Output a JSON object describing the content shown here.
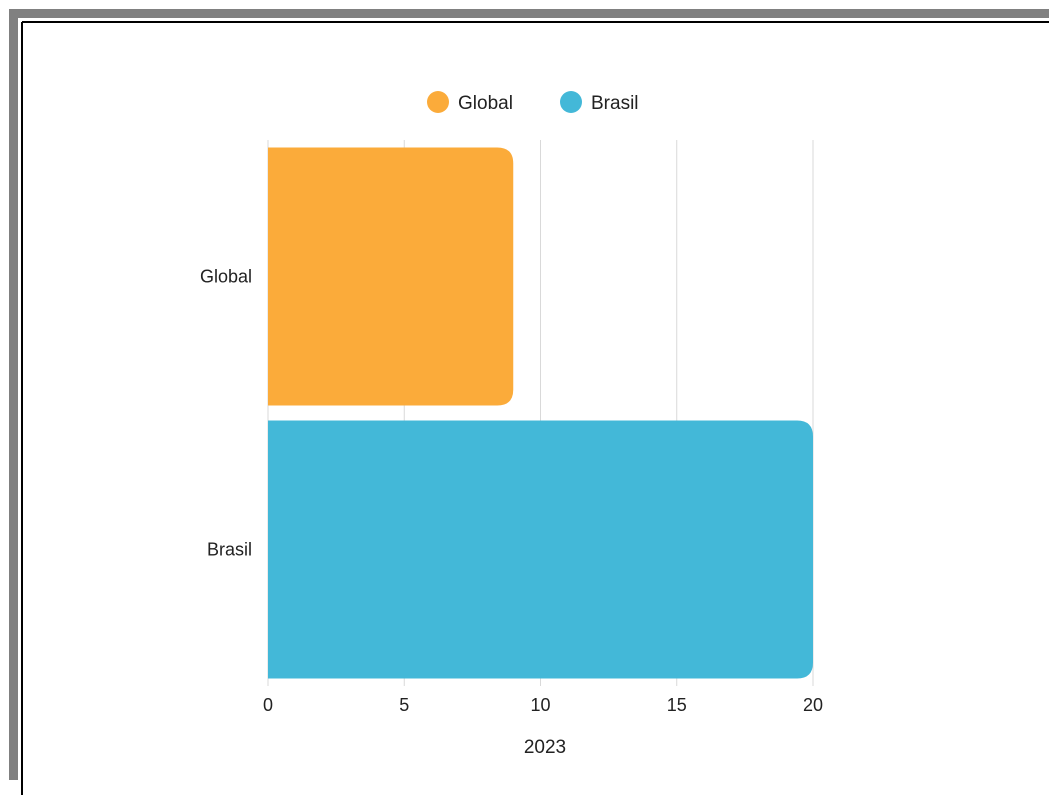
{
  "chart_data": {
    "type": "bar",
    "orientation": "horizontal",
    "categories": [
      "Global",
      "Brasil"
    ],
    "series": [
      {
        "name": "Global",
        "values": [
          9,
          null
        ],
        "color": "#fbab3a"
      },
      {
        "name": "Brasil",
        "values": [
          null,
          20
        ],
        "color": "#43b8d8"
      }
    ],
    "xlabel": "2023",
    "ylabel": "",
    "xlim": [
      0,
      20
    ],
    "xticks": [
      "0",
      "5",
      "10",
      "15",
      "20"
    ],
    "grid": true,
    "legend": {
      "position": "top",
      "items": [
        {
          "label": "Global",
          "color": "#fbab3a"
        },
        {
          "label": "Brasil",
          "color": "#43b8d8"
        }
      ]
    }
  },
  "colors": {
    "frame_shadow": "#808080",
    "frame_border": "#000000",
    "grid": "#d9d9d9"
  }
}
